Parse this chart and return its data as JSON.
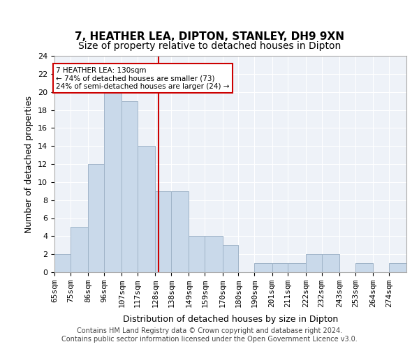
{
  "title": "7, HEATHER LEA, DIPTON, STANLEY, DH9 9XN",
  "subtitle": "Size of property relative to detached houses in Dipton",
  "xlabel": "Distribution of detached houses by size in Dipton",
  "ylabel": "Number of detached properties",
  "bin_labels": [
    "65sqm",
    "75sqm",
    "86sqm",
    "96sqm",
    "107sqm",
    "117sqm",
    "128sqm",
    "138sqm",
    "149sqm",
    "159sqm",
    "170sqm",
    "180sqm",
    "190sqm",
    "201sqm",
    "211sqm",
    "222sqm",
    "232sqm",
    "243sqm",
    "253sqm",
    "264sqm",
    "274sqm"
  ],
  "bar_values": [
    2,
    5,
    12,
    20,
    19,
    14,
    9,
    9,
    4,
    4,
    3,
    0,
    1,
    1,
    1,
    2,
    2,
    0,
    1,
    0,
    1
  ],
  "bin_edges": [
    65,
    75,
    86,
    96,
    107,
    117,
    128,
    138,
    149,
    159,
    170,
    180,
    190,
    201,
    211,
    222,
    232,
    243,
    253,
    264,
    274,
    285
  ],
  "bar_facecolor": "#c9d9ea",
  "bar_edgecolor": "#a0b4c8",
  "vline_x": 130,
  "vline_color": "#cc0000",
  "ylim": [
    0,
    24
  ],
  "yticks": [
    0,
    2,
    4,
    6,
    8,
    10,
    12,
    14,
    16,
    18,
    20,
    22,
    24
  ],
  "bg_color": "#eef2f8",
  "annotation_text": "7 HEATHER LEA: 130sqm\n← 74% of detached houses are smaller (73)\n24% of semi-detached houses are larger (24) →",
  "annotation_box_edgecolor": "#cc0000",
  "annotation_box_facecolor": "#ffffff",
  "footer_text": "Contains HM Land Registry data © Crown copyright and database right 2024.\nContains public sector information licensed under the Open Government Licence v3.0.",
  "title_fontsize": 11,
  "subtitle_fontsize": 10,
  "xlabel_fontsize": 9,
  "ylabel_fontsize": 9,
  "tick_fontsize": 8
}
